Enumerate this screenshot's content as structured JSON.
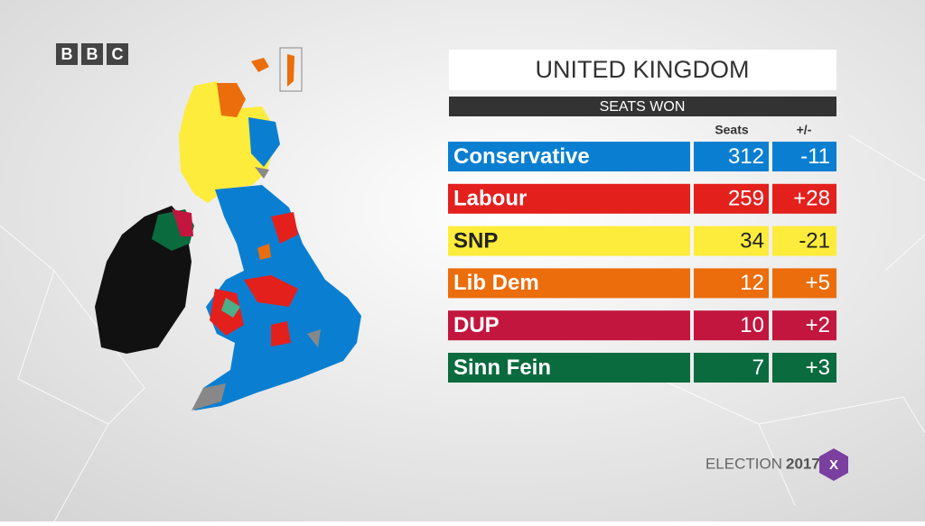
{
  "brand": [
    "B",
    "B",
    "C"
  ],
  "title": "UNITED KINGDOM",
  "subtitle": "SEATS WON",
  "columns": [
    "Seats",
    "+/-"
  ],
  "rows": [
    {
      "party": "Conservative",
      "seats": 312,
      "change": "-11",
      "color": "#0a7fd1"
    },
    {
      "party": "Labour",
      "seats": 259,
      "change": "+28",
      "color": "#e4201d"
    },
    {
      "party": "SNP",
      "seats": 34,
      "change": "-21",
      "color": "#fdec3b"
    },
    {
      "party": "Lib Dem",
      "seats": 12,
      "change": "+5",
      "color": "#eb6d0c"
    },
    {
      "party": "DUP",
      "seats": 10,
      "change": "+2",
      "color": "#c2163e"
    },
    {
      "party": "Sinn Fein",
      "seats": 7,
      "change": "+3",
      "color": "#0a6b3e"
    }
  ],
  "footer": {
    "label": "ELECTION",
    "year": "2017",
    "mark": "X"
  }
}
